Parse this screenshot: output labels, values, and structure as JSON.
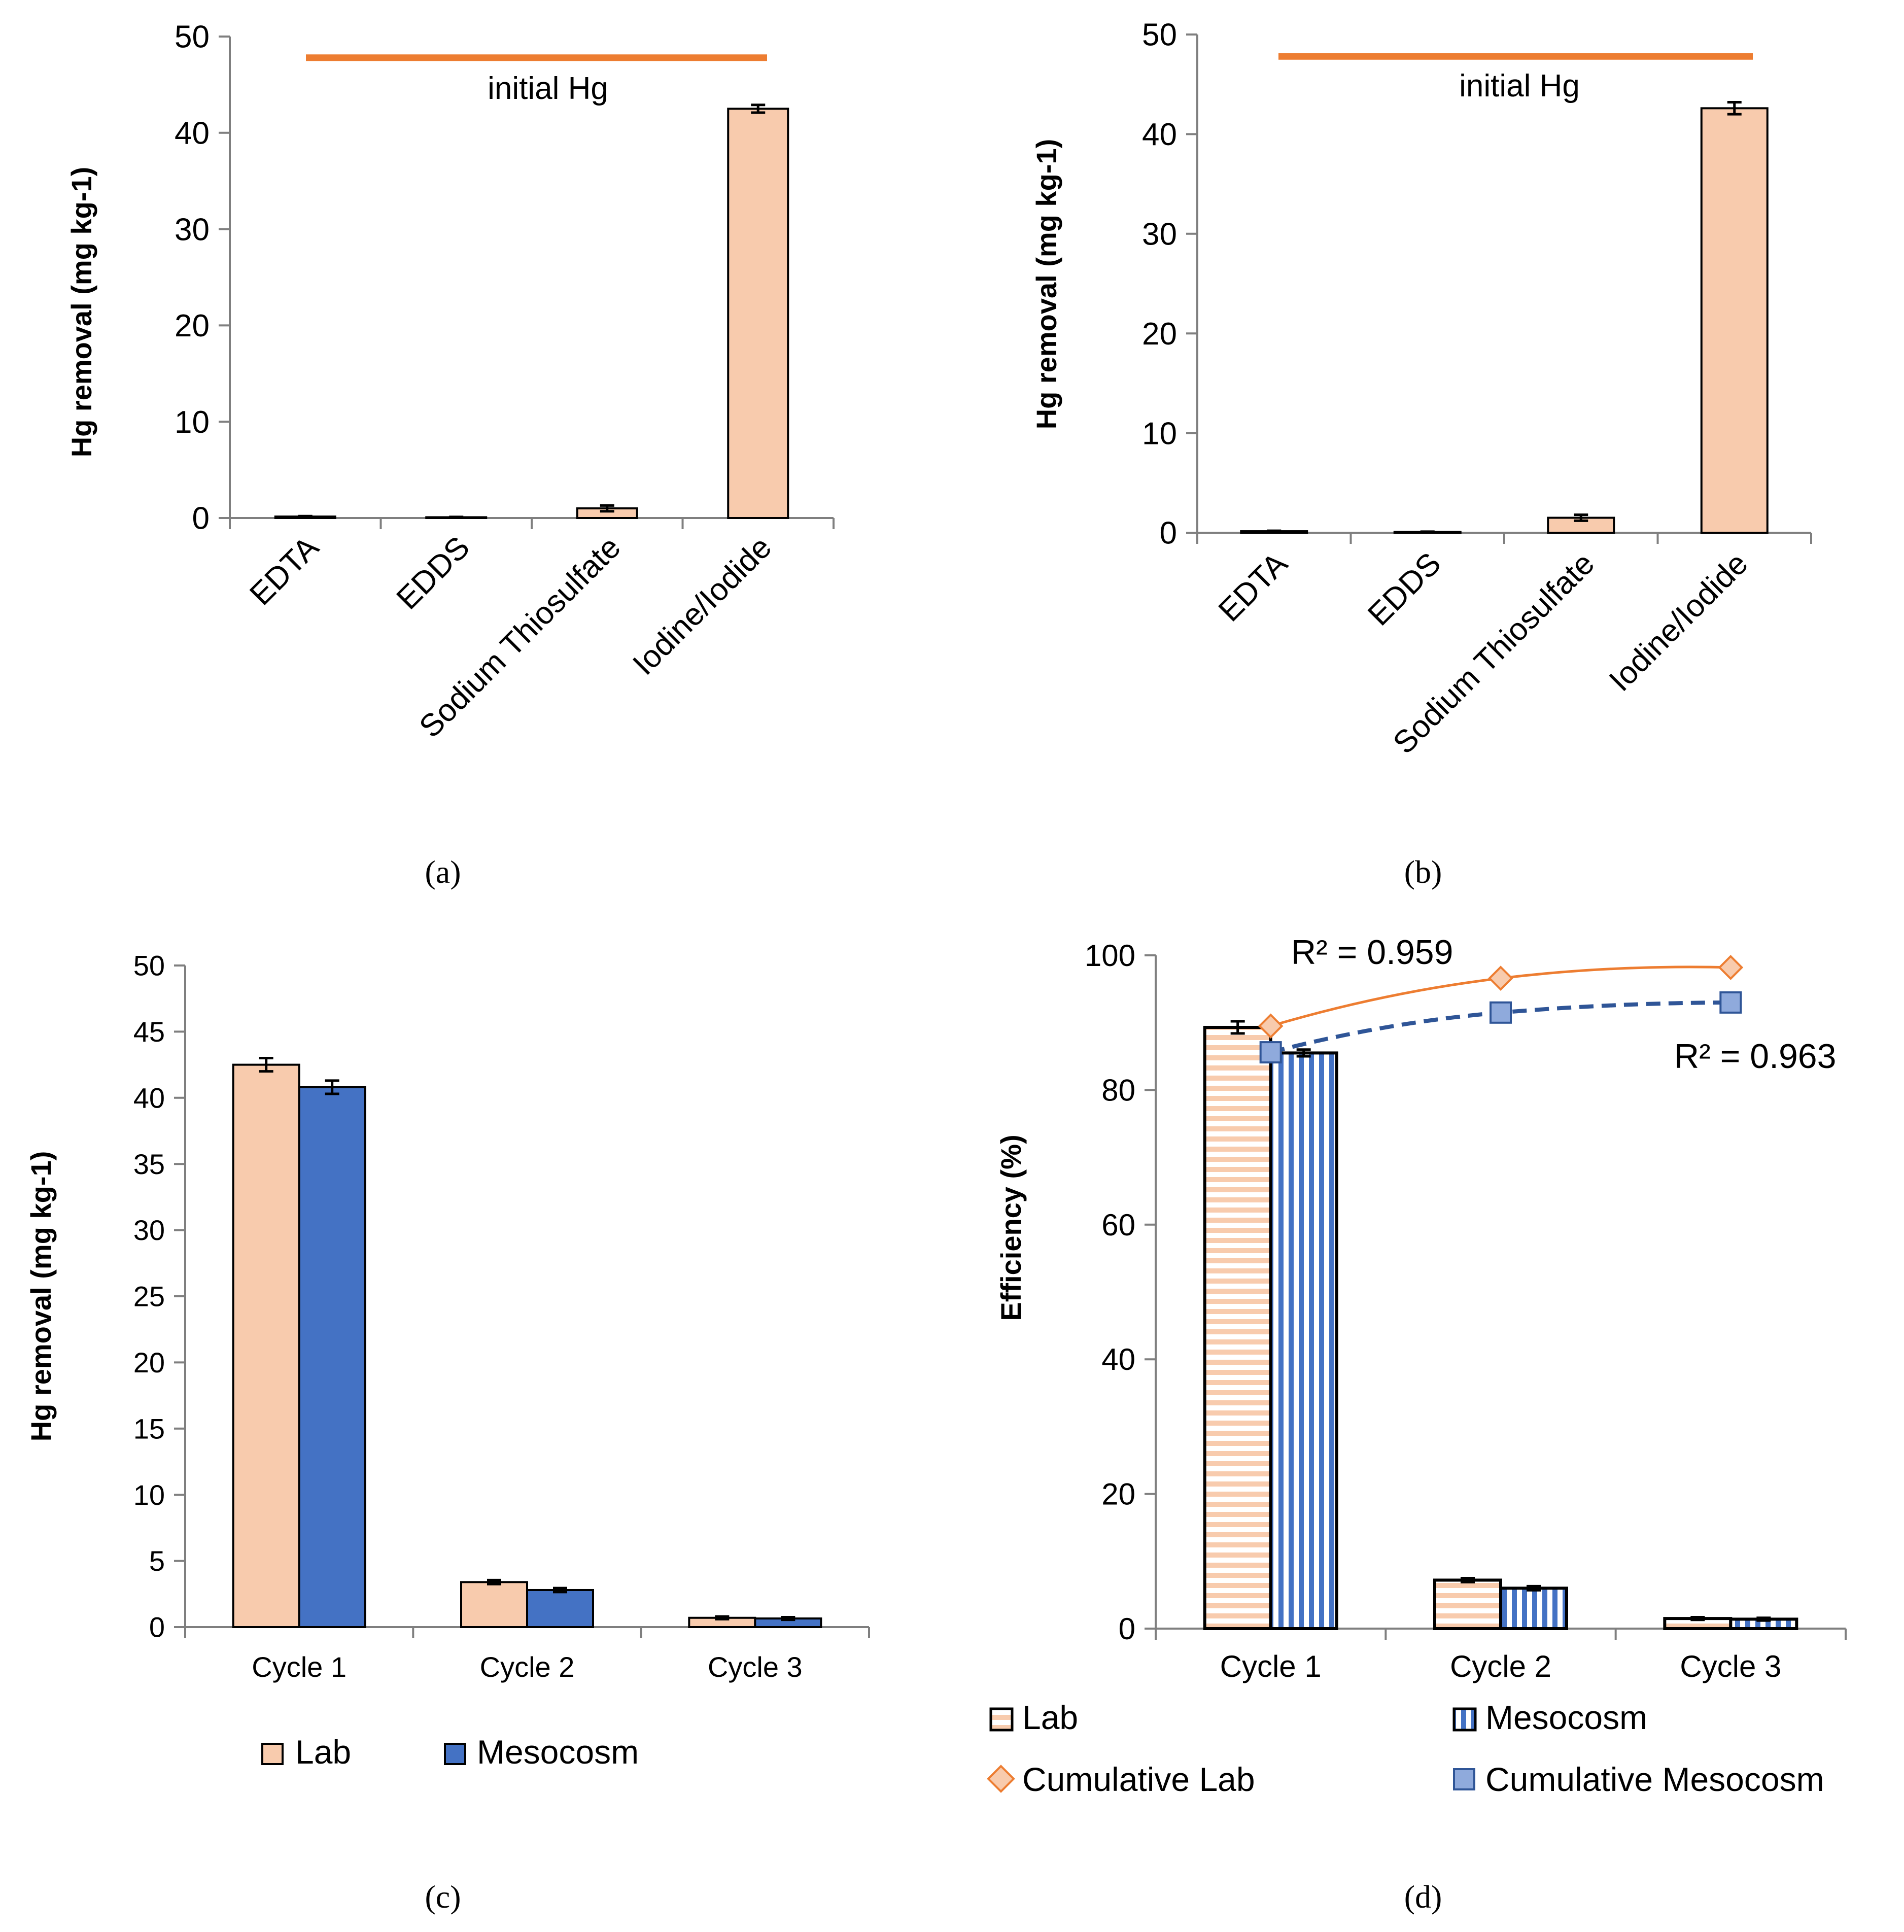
{
  "figure": {
    "captions": [
      "(a)",
      "(b)",
      "(c)",
      "(d)"
    ]
  },
  "colors": {
    "lab_fill": "#f8cbad",
    "meso_fill": "#4472c4",
    "initial_line": "#ed7d31",
    "axis": "#7f7f7f",
    "bar_stroke": "#000000",
    "trend_meso": "#2f5597"
  },
  "chart_data": [
    {
      "id": "a",
      "type": "bar",
      "caption": "(a)",
      "ylabel": "Hg removal (mg kg-1)",
      "categories": [
        "EDTA",
        "EDDS",
        "Sodium Thiosulfate",
        "Iodine/Iodide"
      ],
      "values": [
        0.15,
        0.08,
        1.0,
        42.5
      ],
      "errors": [
        0.05,
        0.03,
        0.3,
        0.4
      ],
      "ylim": [
        0,
        50
      ],
      "yticks": [
        "0",
        "10",
        "20",
        "30",
        "40",
        "50"
      ],
      "reference_line": {
        "value": 47.8,
        "label": "initial Hg"
      }
    },
    {
      "id": "b",
      "type": "bar",
      "caption": "(b)",
      "ylabel": "Hg removal (mg kg-1)",
      "categories": [
        "EDTA",
        "EDDS",
        "Sodium Thiosulfate",
        "Iodine/Iodide"
      ],
      "values": [
        0.15,
        0.08,
        1.5,
        42.6
      ],
      "errors": [
        0.05,
        0.03,
        0.3,
        0.6
      ],
      "ylim": [
        0,
        50
      ],
      "yticks": [
        "0",
        "10",
        "20",
        "30",
        "40",
        "50"
      ],
      "reference_line": {
        "value": 47.8,
        "label": "initial Hg"
      }
    },
    {
      "id": "c",
      "type": "bar",
      "caption": "(c)",
      "ylabel": "Hg removal (mg kg-1)",
      "categories": [
        "Cycle 1",
        "Cycle 2",
        "Cycle 3"
      ],
      "series": [
        {
          "name": "Lab",
          "values": [
            42.5,
            3.4,
            0.7
          ],
          "errors": [
            0.5,
            0.15,
            0.1
          ]
        },
        {
          "name": "Mesocosm",
          "values": [
            40.8,
            2.8,
            0.65
          ],
          "errors": [
            0.5,
            0.15,
            0.1
          ]
        }
      ],
      "ylim": [
        0,
        50
      ],
      "yticks": [
        "0",
        "5",
        "10",
        "15",
        "20",
        "25",
        "30",
        "35",
        "40",
        "45",
        "50"
      ],
      "legend": [
        "Lab",
        "Mesocosm"
      ]
    },
    {
      "id": "d",
      "type": "bar",
      "caption": "(d)",
      "ylabel": "Efficiency (%)",
      "categories": [
        "Cycle 1",
        "Cycle 2",
        "Cycle 3"
      ],
      "series": [
        {
          "name": "Lab",
          "values": [
            89.3,
            7.2,
            1.5
          ],
          "errors": [
            0.9,
            0.3,
            0.2
          ]
        },
        {
          "name": "Mesocosm",
          "values": [
            85.5,
            6.0,
            1.4
          ],
          "errors": [
            0.5,
            0.3,
            0.2
          ]
        },
        {
          "name": "Cumulative Lab",
          "kind": "scatter",
          "values": [
            89.5,
            96.6,
            98.2
          ]
        },
        {
          "name": "Cumulative Mesocosm",
          "kind": "scatter",
          "values": [
            85.6,
            91.5,
            93.0
          ]
        }
      ],
      "trendlines": [
        {
          "series": "Cumulative Lab",
          "r2_label": "R² = 0.959"
        },
        {
          "series": "Cumulative Mesocosm",
          "r2_label": "R² = 0.963"
        }
      ],
      "ylim": [
        0,
        100
      ],
      "yticks": [
        "0",
        "20",
        "40",
        "60",
        "80",
        "100"
      ],
      "legend": [
        "Lab",
        "Mesocosm",
        "Cumulative Lab",
        "Cumulative Mesocosm"
      ]
    }
  ]
}
